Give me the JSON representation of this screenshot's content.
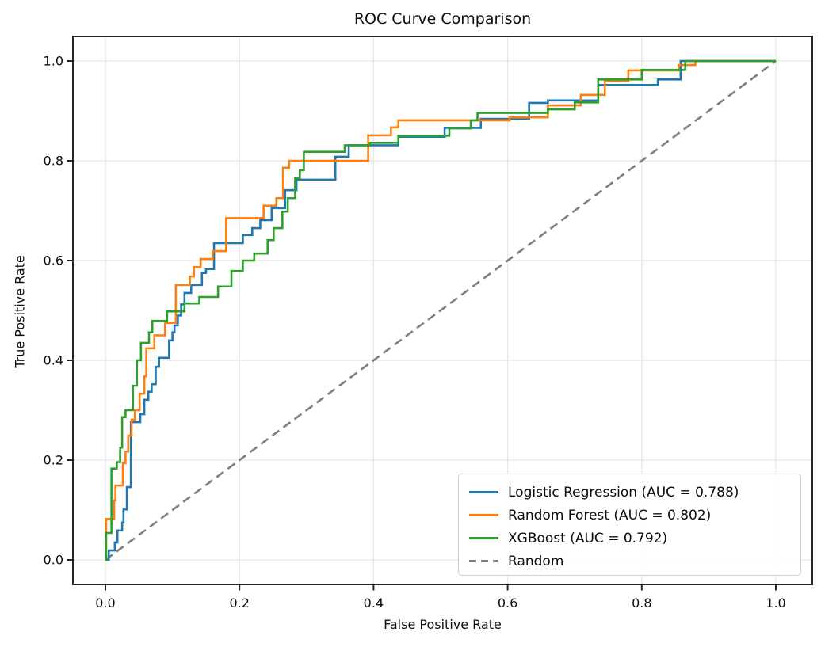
{
  "chart_data": {
    "type": "line",
    "title": "ROC Curve Comparison",
    "xlabel": "False Positive Rate",
    "ylabel": "True Positive Rate",
    "xlim": [
      -0.05,
      1.05
    ],
    "ylim": [
      -0.05,
      1.05
    ],
    "grid": true,
    "legend_position": "lower right",
    "x_tick_values": [
      0,
      0.2,
      0.4,
      0.6,
      0.8,
      1.0
    ],
    "x_tick_labels": [
      "0.0",
      "0.2",
      "0.4",
      "0.6",
      "0.8",
      "1.0"
    ],
    "y_tick_values": [
      0,
      0.2,
      0.4,
      0.6,
      0.8,
      1.0
    ],
    "y_tick_labels": [
      "0.0",
      "0.2",
      "0.4",
      "0.6",
      "0.8",
      "1.0"
    ],
    "series": [
      {
        "name": "Logistic Regression",
        "legend_label": "Logistic Regression (AUC = 0.788)",
        "auc": 0.788,
        "color": "#1f77b4",
        "style": "solid",
        "draw": "steps",
        "points": [
          [
            0,
            0
          ],
          [
            0.005,
            0.019
          ],
          [
            0.014,
            0.035
          ],
          [
            0.018,
            0.059
          ],
          [
            0.025,
            0.075
          ],
          [
            0.027,
            0.101
          ],
          [
            0.032,
            0.146
          ],
          [
            0.038,
            0.276
          ],
          [
            0.052,
            0.292
          ],
          [
            0.058,
            0.321
          ],
          [
            0.064,
            0.337
          ],
          [
            0.069,
            0.352
          ],
          [
            0.075,
            0.387
          ],
          [
            0.08,
            0.405
          ],
          [
            0.095,
            0.44
          ],
          [
            0.1,
            0.456
          ],
          [
            0.103,
            0.47
          ],
          [
            0.108,
            0.49
          ],
          [
            0.113,
            0.512
          ],
          [
            0.118,
            0.535
          ],
          [
            0.128,
            0.551
          ],
          [
            0.144,
            0.575
          ],
          [
            0.15,
            0.583
          ],
          [
            0.162,
            0.635
          ],
          [
            0.205,
            0.651
          ],
          [
            0.219,
            0.665
          ],
          [
            0.231,
            0.681
          ],
          [
            0.248,
            0.705
          ],
          [
            0.268,
            0.741
          ],
          [
            0.285,
            0.762
          ],
          [
            0.343,
            0.808
          ],
          [
            0.363,
            0.831
          ],
          [
            0.437,
            0.848
          ],
          [
            0.506,
            0.866
          ],
          [
            0.56,
            0.884
          ],
          [
            0.632,
            0.916
          ],
          [
            0.66,
            0.921
          ],
          [
            0.735,
            0.952
          ],
          [
            0.824,
            0.963
          ],
          [
            0.858,
            1
          ],
          [
            1,
            1
          ]
        ]
      },
      {
        "name": "Random Forest",
        "legend_label": "Random Forest (AUC = 0.802)",
        "auc": 0.802,
        "color": "#ff7f0e",
        "style": "solid",
        "draw": "steps",
        "points": [
          [
            0,
            0
          ],
          [
            0.001,
            0.082
          ],
          [
            0.013,
            0.119
          ],
          [
            0.015,
            0.149
          ],
          [
            0.026,
            0.194
          ],
          [
            0.03,
            0.217
          ],
          [
            0.034,
            0.249
          ],
          [
            0.039,
            0.281
          ],
          [
            0.044,
            0.3
          ],
          [
            0.051,
            0.333
          ],
          [
            0.058,
            0.368
          ],
          [
            0.061,
            0.424
          ],
          [
            0.073,
            0.45
          ],
          [
            0.089,
            0.475
          ],
          [
            0.105,
            0.551
          ],
          [
            0.126,
            0.568
          ],
          [
            0.132,
            0.587
          ],
          [
            0.142,
            0.603
          ],
          [
            0.16,
            0.619
          ],
          [
            0.18,
            0.685
          ],
          [
            0.236,
            0.71
          ],
          [
            0.255,
            0.725
          ],
          [
            0.265,
            0.786
          ],
          [
            0.274,
            0.8
          ],
          [
            0.392,
            0.851
          ],
          [
            0.426,
            0.867
          ],
          [
            0.437,
            0.881
          ],
          [
            0.603,
            0.887
          ],
          [
            0.66,
            0.911
          ],
          [
            0.709,
            0.932
          ],
          [
            0.745,
            0.96
          ],
          [
            0.78,
            0.981
          ],
          [
            0.855,
            0.992
          ],
          [
            0.88,
            1
          ],
          [
            1,
            1
          ]
        ]
      },
      {
        "name": "XGBoost",
        "legend_label": "XGBoost (AUC = 0.792)",
        "auc": 0.792,
        "color": "#2ca02c",
        "style": "solid",
        "draw": "steps",
        "points": [
          [
            0,
            0
          ],
          [
            0.001,
            0.054
          ],
          [
            0.009,
            0.183
          ],
          [
            0.017,
            0.196
          ],
          [
            0.022,
            0.225
          ],
          [
            0.025,
            0.286
          ],
          [
            0.03,
            0.3
          ],
          [
            0.041,
            0.349
          ],
          [
            0.047,
            0.4
          ],
          [
            0.053,
            0.435
          ],
          [
            0.065,
            0.456
          ],
          [
            0.07,
            0.479
          ],
          [
            0.092,
            0.498
          ],
          [
            0.118,
            0.514
          ],
          [
            0.14,
            0.527
          ],
          [
            0.168,
            0.548
          ],
          [
            0.188,
            0.579
          ],
          [
            0.205,
            0.6
          ],
          [
            0.222,
            0.614
          ],
          [
            0.242,
            0.641
          ],
          [
            0.251,
            0.665
          ],
          [
            0.264,
            0.698
          ],
          [
            0.272,
            0.725
          ],
          [
            0.283,
            0.765
          ],
          [
            0.29,
            0.781
          ],
          [
            0.296,
            0.818
          ],
          [
            0.357,
            0.831
          ],
          [
            0.395,
            0.836
          ],
          [
            0.437,
            0.85
          ],
          [
            0.513,
            0.865
          ],
          [
            0.545,
            0.881
          ],
          [
            0.555,
            0.896
          ],
          [
            0.66,
            0.903
          ],
          [
            0.7,
            0.917
          ],
          [
            0.735,
            0.963
          ],
          [
            0.8,
            0.982
          ],
          [
            0.865,
            1
          ],
          [
            1,
            1
          ]
        ]
      },
      {
        "name": "Random",
        "legend_label": "Random",
        "color": "#7f7f7f",
        "style": "dashed",
        "draw": "line",
        "points": [
          [
            0,
            0
          ],
          [
            1,
            1
          ]
        ]
      }
    ],
    "colors": {
      "grid": "#e7e7e7",
      "spine": "#262626",
      "text": "#0d0d0d"
    }
  }
}
